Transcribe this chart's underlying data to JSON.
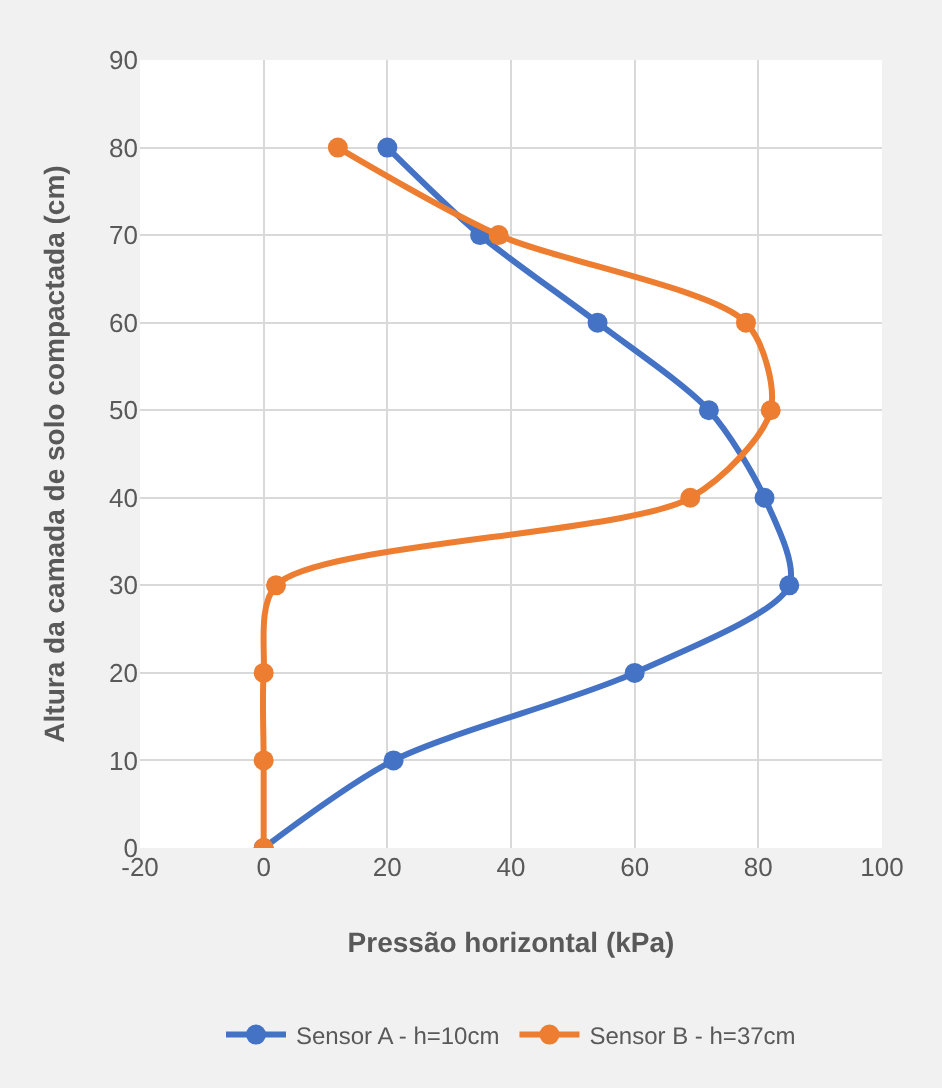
{
  "chart_data": {
    "type": "line",
    "xlabel": "Pressão horizontal (kPa)",
    "ylabel": "Altura da camada de solo compactada (cm)",
    "xlim": [
      -20,
      100
    ],
    "xticks": [
      -20,
      0,
      20,
      40,
      60,
      80,
      100
    ],
    "ylim": [
      0,
      90
    ],
    "yticks": [
      0,
      10,
      20,
      30,
      40,
      50,
      60,
      70,
      80,
      90
    ],
    "grid": true,
    "legend": "bottom",
    "marker": "circle",
    "line_style": "solid",
    "series": [
      {
        "name": "Sensor A - h=10cm",
        "color": "#4472c4",
        "x": [
          20,
          35,
          54,
          72,
          81,
          85,
          60,
          21,
          0
        ],
        "values": [
          80,
          70,
          60,
          50,
          40,
          30,
          20,
          10,
          0
        ]
      },
      {
        "name": "Sensor B - h=37cm",
        "color": "#ed7d31",
        "x": [
          12,
          38,
          78,
          82,
          69,
          2,
          0,
          0,
          0
        ],
        "values": [
          80,
          70,
          60,
          50,
          40,
          30,
          20,
          10,
          0
        ]
      }
    ]
  }
}
